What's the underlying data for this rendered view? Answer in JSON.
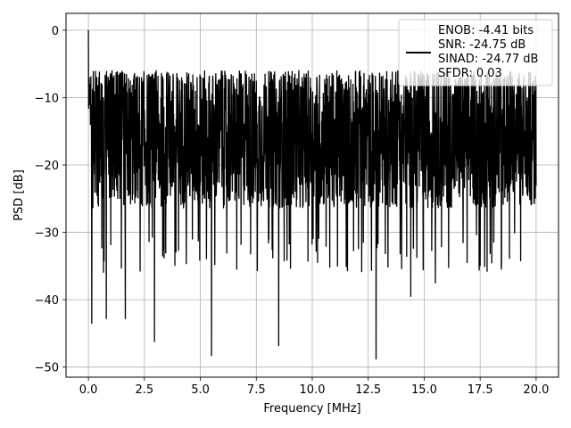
{
  "chart_data": {
    "type": "line",
    "xlabel": "Frequency [MHz]",
    "ylabel": "PSD [dB]",
    "xlim": [
      -1.0,
      21.0
    ],
    "ylim": [
      -51.5,
      2.5
    ],
    "x_ticks": [
      0.0,
      2.5,
      5.0,
      7.5,
      10.0,
      12.5,
      15.0,
      17.5,
      20.0
    ],
    "x_tick_labels": [
      "0.0",
      "2.5",
      "5.0",
      "7.5",
      "10.0",
      "12.5",
      "15.0",
      "17.5",
      "20.0"
    ],
    "y_ticks": [
      0,
      -10,
      -20,
      -30,
      -40,
      -50
    ],
    "y_tick_labels": [
      "0",
      "−10",
      "−20",
      "−30",
      "−40",
      "−50"
    ],
    "grid": true,
    "series": [
      {
        "color": "#000000",
        "x_range": [
          0.0,
          20.0
        ],
        "peak": {
          "x": 0.0,
          "y": 0.0
        },
        "noise_floor_band_db": [
          -30,
          -6
        ],
        "notable_minima": [
          {
            "x": 0.15,
            "y": -43.5
          },
          {
            "x": 0.8,
            "y": -42.8
          },
          {
            "x": 1.65,
            "y": -42.8
          },
          {
            "x": 2.95,
            "y": -46.2
          },
          {
            "x": 5.5,
            "y": -48.3
          },
          {
            "x": 8.5,
            "y": -46.8
          },
          {
            "x": 12.85,
            "y": -48.8
          },
          {
            "x": 14.4,
            "y": -39.5
          },
          {
            "x": 15.5,
            "y": -37.5
          }
        ]
      }
    ],
    "legend": {
      "placement": "top-right",
      "lines": [
        "ENOB: -4.41 bits",
        "SNR: -24.75 dB",
        "SINAD: -24.77 dB",
        "SFDR: 0.03"
      ]
    }
  },
  "colors": {
    "line": "#000000",
    "grid": "#b0b0b0",
    "background": "#ffffff"
  }
}
